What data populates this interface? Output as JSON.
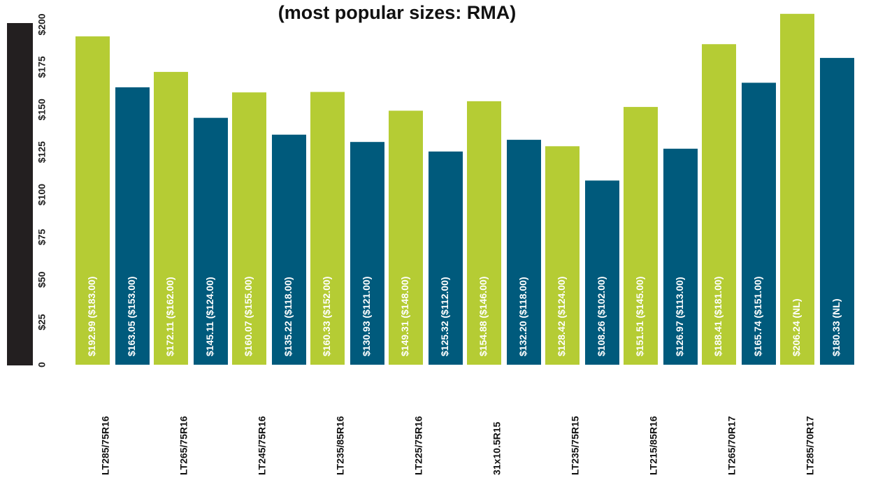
{
  "chart_data": {
    "type": "bar",
    "subtitle": "(most popular sizes: RMA)",
    "categories": [
      "LT285/75R16",
      "LT265/75R16",
      "LT245/75R16",
      "LT235/85R16",
      "LT225/75R16",
      "31x10.5R15",
      "LT235/75R15",
      "LT215/85R16",
      "LT265/70R17",
      "LT285/70R17"
    ],
    "series": [
      {
        "color": "#b5cc34",
        "values": [
          192.99,
          172.11,
          160.07,
          160.33,
          149.31,
          154.88,
          128.42,
          151.51,
          188.41,
          206.24
        ],
        "value_labels": [
          "$192.99 ($183.00)",
          "$172.11 ($162.00)",
          "$160.07 ($155.00)",
          "$160.33 ($152.00)",
          "$149.31 ($148.00)",
          "$154.88 ($146.00)",
          "$128.42 ($124.00)",
          "$151.51 ($145.00)",
          "$188.41 ($181.00)",
          "$206.24 (NL)"
        ]
      },
      {
        "color": "#005a7c",
        "values": [
          163.05,
          145.11,
          135.22,
          130.93,
          125.32,
          132.2,
          108.26,
          126.97,
          165.74,
          180.33
        ],
        "value_labels": [
          "$163.05 ($153.00)",
          "$145.11 ($124.00)",
          "$135.22 ($118.00)",
          "$130.93 ($121.00)",
          "$125.32 ($112.00)",
          "$132.20 ($118.00)",
          "$108.26 ($102.00)",
          "$126.97 ($113.00)",
          "$165.74 ($151.00)",
          "$180.33 (NL)"
        ]
      }
    ],
    "ylim": [
      0,
      200
    ],
    "yticks": [
      0,
      {
        "value": 25,
        "label": "$25"
      },
      {
        "value": 50,
        "label": "$50"
      },
      {
        "value": 75,
        "label": "$75"
      },
      {
        "value": 100,
        "label": "$100"
      },
      {
        "value": 125,
        "label": "$125"
      },
      {
        "value": 150,
        "label": "$150"
      },
      {
        "value": 175,
        "label": "$175"
      },
      {
        "value": 200,
        "label": "$200"
      }
    ],
    "grid": false
  }
}
